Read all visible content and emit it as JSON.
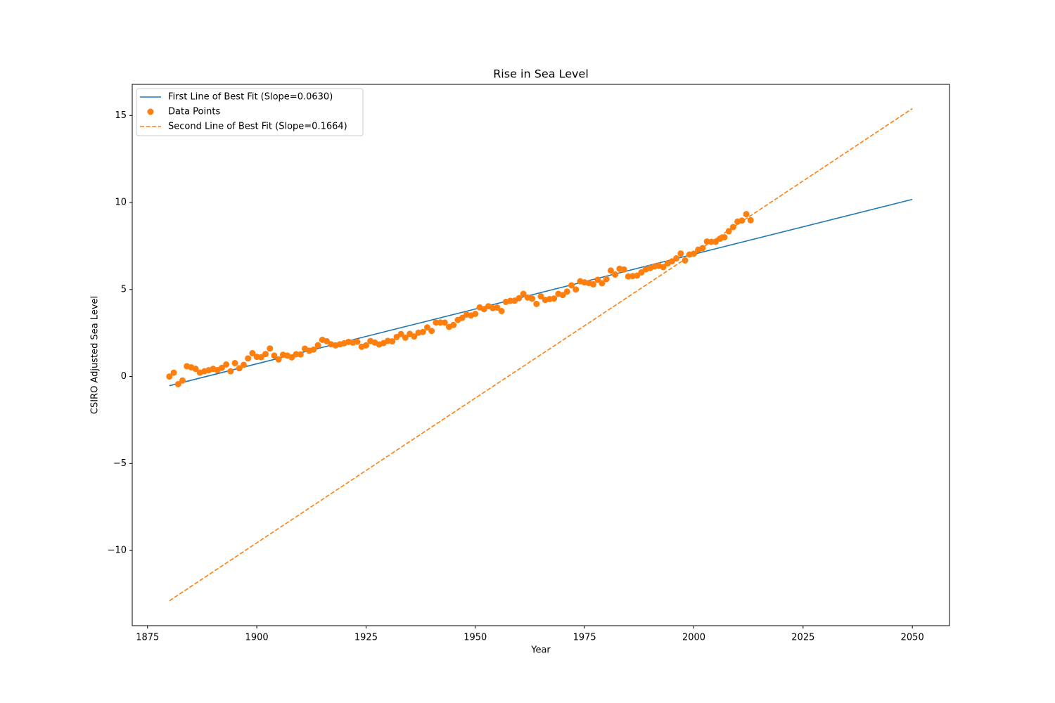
{
  "chart_data": {
    "type": "scatter",
    "title": "Rise in Sea Level",
    "x_label": "Year",
    "y_label": "CSIRO Adjusted Sea Level",
    "xlim": [
      1871.5,
      2058.5
    ],
    "ylim": [
      -14.32,
      16.79
    ],
    "xticks": [
      1875,
      1900,
      1925,
      1950,
      1975,
      2000,
      2025,
      2050
    ],
    "yticks": [
      {
        "value": -10,
        "label": "−10"
      },
      {
        "value": -5,
        "label": "−5"
      },
      0,
      5,
      10,
      15
    ],
    "grid": false,
    "legend": "upper left",
    "series": [
      {
        "name": "First Line of Best Fit (Slope=0.0630)",
        "type": "line",
        "linestyle": "solid",
        "color": "#1f77b4",
        "x": [
          1880,
          2050
        ],
        "values": [
          -0.53,
          10.18
        ]
      },
      {
        "name": "Data Points",
        "type": "scatter",
        "color": "#ff7f0e",
        "x": [
          1880,
          1881,
          1882,
          1883,
          1884,
          1885,
          1886,
          1887,
          1888,
          1889,
          1890,
          1891,
          1892,
          1893,
          1894,
          1895,
          1896,
          1897,
          1898,
          1899,
          1900,
          1901,
          1902,
          1903,
          1904,
          1905,
          1906,
          1907,
          1908,
          1909,
          1910,
          1911,
          1912,
          1913,
          1914,
          1915,
          1916,
          1917,
          1918,
          1919,
          1920,
          1921,
          1922,
          1923,
          1924,
          1925,
          1926,
          1927,
          1928,
          1929,
          1930,
          1931,
          1932,
          1933,
          1934,
          1935,
          1936,
          1937,
          1938,
          1939,
          1940,
          1941,
          1942,
          1943,
          1944,
          1945,
          1946,
          1947,
          1948,
          1949,
          1950,
          1951,
          1952,
          1953,
          1954,
          1955,
          1956,
          1957,
          1958,
          1959,
          1960,
          1961,
          1962,
          1963,
          1964,
          1965,
          1966,
          1967,
          1968,
          1969,
          1970,
          1971,
          1972,
          1973,
          1974,
          1975,
          1976,
          1977,
          1978,
          1979,
          1980,
          1981,
          1982,
          1983,
          1984,
          1985,
          1986,
          1987,
          1988,
          1989,
          1990,
          1991,
          1992,
          1993,
          1994,
          1995,
          1996,
          1997,
          1998,
          1999,
          2000,
          2001,
          2002,
          2003,
          2004,
          2005,
          2006,
          2007,
          2008,
          2009,
          2010,
          2011,
          2012,
          2013
        ],
        "values": [
          0,
          0.22,
          -0.44,
          -0.23,
          0.59,
          0.53,
          0.44,
          0.22,
          0.3,
          0.36,
          0.44,
          0.37,
          0.5,
          0.69,
          0.3,
          0.77,
          0.47,
          0.67,
          1.04,
          1.34,
          1.13,
          1.11,
          1.29,
          1.61,
          1.2,
          0.98,
          1.25,
          1.2,
          1.1,
          1.28,
          1.27,
          1.6,
          1.48,
          1.55,
          1.8,
          2.11,
          2.03,
          1.85,
          1.79,
          1.85,
          1.91,
          1.99,
          1.95,
          2,
          1.71,
          1.79,
          2.04,
          1.95,
          1.84,
          1.92,
          2.05,
          2.02,
          2.27,
          2.44,
          2.23,
          2.45,
          2.3,
          2.52,
          2.56,
          2.82,
          2.62,
          3.1,
          3.1,
          3.1,
          2.85,
          2.96,
          3.25,
          3.37,
          3.56,
          3.51,
          3.6,
          3.97,
          3.87,
          4.04,
          3.93,
          3.96,
          3.76,
          4.29,
          4.35,
          4.36,
          4.5,
          4.75,
          4.54,
          4.48,
          4.17,
          4.61,
          4.4,
          4.45,
          4.48,
          4.75,
          4.68,
          4.88,
          5.24,
          5,
          5.47,
          5.41,
          5.37,
          5.3,
          5.56,
          5.36,
          5.6,
          6.09,
          5.86,
          6.19,
          6.15,
          5.75,
          5.77,
          5.8,
          5.98,
          6.16,
          6.23,
          6.33,
          6.36,
          6.29,
          6.5,
          6.62,
          6.79,
          7.07,
          6.67,
          7.01,
          7.06,
          7.29,
          7.38,
          7.76,
          7.74,
          7.74,
          7.92,
          8,
          8.35,
          8.59,
          8.9,
          8.96,
          9.33,
          8.98
        ]
      },
      {
        "name": "Second Line of Best Fit (Slope=0.1664)",
        "type": "line",
        "linestyle": "dashed",
        "color": "#ff7f0e",
        "x": [
          1880,
          2050
        ],
        "values": [
          -12.89,
          15.4
        ]
      }
    ]
  }
}
